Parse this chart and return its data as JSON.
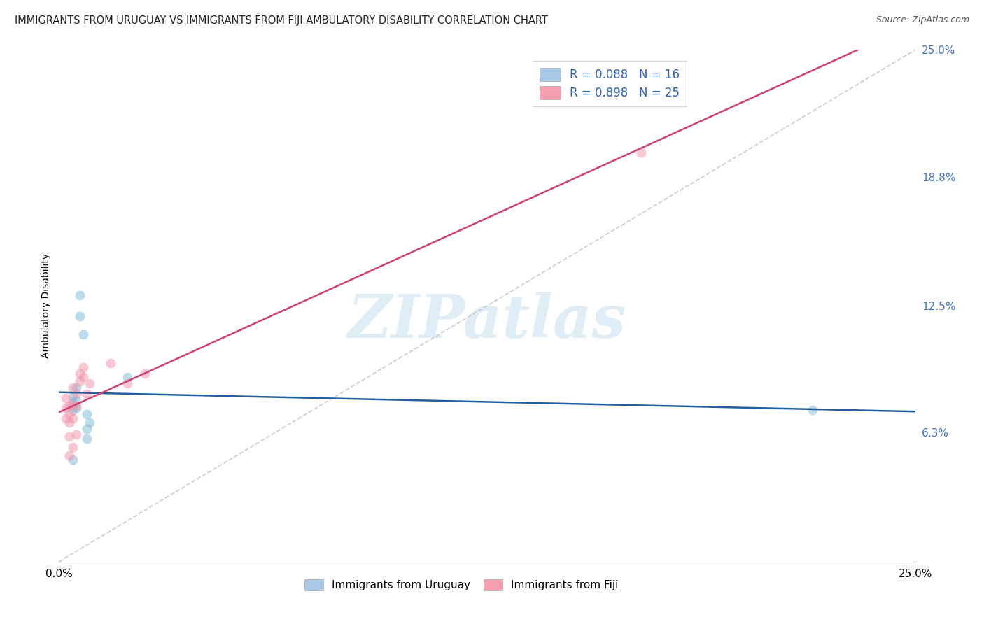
{
  "title": "IMMIGRANTS FROM URUGUAY VS IMMIGRANTS FROM FIJI AMBULATORY DISABILITY CORRELATION CHART",
  "source": "Source: ZipAtlas.com",
  "ylabel": "Ambulatory Disability",
  "xlim": [
    0.0,
    0.25
  ],
  "ylim": [
    0.0,
    0.25
  ],
  "xtick_labels": [
    "0.0%",
    "25.0%"
  ],
  "ytick_labels": [
    "6.3%",
    "12.5%",
    "18.8%",
    "25.0%"
  ],
  "ytick_values": [
    0.063,
    0.125,
    0.188,
    0.25
  ],
  "watermark_text": "ZIPatlas",
  "inplot_legend": [
    {
      "label": "R = 0.088   N = 16",
      "color": "#a8c8e8"
    },
    {
      "label": "R = 0.898   N = 25",
      "color": "#f4a0b0"
    }
  ],
  "bottom_legend": [
    {
      "label": "Immigrants from Uruguay",
      "color": "#a8c8e8"
    },
    {
      "label": "Immigrants from Fiji",
      "color": "#f4a0b0"
    }
  ],
  "uruguay_scatter": [
    [
      0.004,
      0.078
    ],
    [
      0.004,
      0.074
    ],
    [
      0.004,
      0.081
    ],
    [
      0.005,
      0.085
    ],
    [
      0.005,
      0.079
    ],
    [
      0.005,
      0.075
    ],
    [
      0.006,
      0.13
    ],
    [
      0.006,
      0.12
    ],
    [
      0.007,
      0.111
    ],
    [
      0.008,
      0.065
    ],
    [
      0.008,
      0.06
    ],
    [
      0.008,
      0.072
    ],
    [
      0.009,
      0.068
    ],
    [
      0.02,
      0.09
    ],
    [
      0.22,
      0.074
    ],
    [
      0.004,
      0.05
    ]
  ],
  "fiji_scatter": [
    [
      0.002,
      0.075
    ],
    [
      0.002,
      0.08
    ],
    [
      0.002,
      0.07
    ],
    [
      0.003,
      0.076
    ],
    [
      0.003,
      0.072
    ],
    [
      0.003,
      0.068
    ],
    [
      0.004,
      0.085
    ],
    [
      0.004,
      0.077
    ],
    [
      0.004,
      0.07
    ],
    [
      0.005,
      0.082
    ],
    [
      0.005,
      0.076
    ],
    [
      0.006,
      0.092
    ],
    [
      0.006,
      0.088
    ],
    [
      0.007,
      0.095
    ],
    [
      0.007,
      0.09
    ],
    [
      0.008,
      0.082
    ],
    [
      0.009,
      0.087
    ],
    [
      0.015,
      0.097
    ],
    [
      0.02,
      0.087
    ],
    [
      0.025,
      0.092
    ],
    [
      0.003,
      0.061
    ],
    [
      0.004,
      0.056
    ],
    [
      0.005,
      0.062
    ],
    [
      0.17,
      0.2
    ],
    [
      0.003,
      0.052
    ]
  ],
  "uruguay_color": "#7ab8d8",
  "fiji_color": "#f090a8",
  "scatter_alpha": 0.5,
  "scatter_size": 100,
  "bg_color": "#ffffff",
  "grid_color": "#d8d8d8",
  "diagonal_color": "#cccccc",
  "trend_line_uruguay_color": "#2060a0",
  "trend_line_fiji_color": "#d04070",
  "trend_lw": 1.8,
  "diagonal_lw": 1.2
}
